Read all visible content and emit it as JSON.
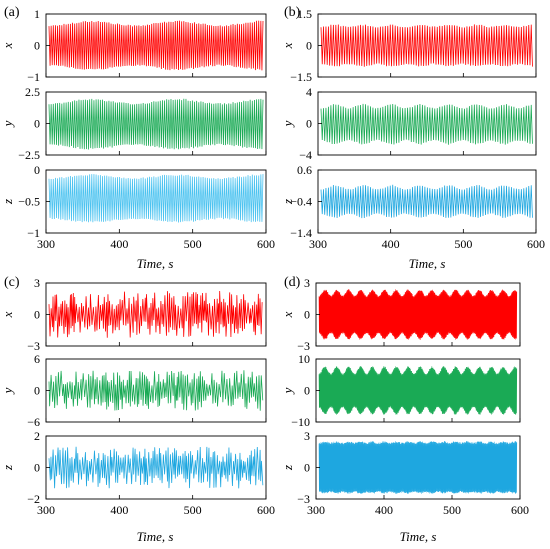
{
  "chart_data": [
    {
      "type": "line",
      "panel_label": "(a)",
      "xlabel": "Time, s",
      "xlim": [
        300,
        600
      ],
      "xticks": [
        "300",
        "400",
        "500",
        "600"
      ],
      "series": [
        {
          "var": "x",
          "color": "#ff0000",
          "ylim": [
            -1,
            1
          ],
          "yticks": [
            "-1",
            "0",
            "1"
          ],
          "center": 0.0,
          "amplitude": 0.82,
          "style": "periodic",
          "period": 3.0,
          "modulation_period": 120,
          "modulation_depth": 0.18
        },
        {
          "var": "y",
          "color": "#1aaa55",
          "ylim": [
            -2.5,
            2.5
          ],
          "yticks": [
            "-2.5",
            "0",
            "2.5"
          ],
          "center": -0.05,
          "amplitude": 2.1,
          "style": "periodic",
          "period": 3.0,
          "modulation_period": 120,
          "modulation_depth": 0.18
        },
        {
          "var": "z",
          "color": "#4cc3f0",
          "ylim": [
            -1,
            0
          ],
          "yticks": [
            "-1",
            "-0.5",
            "0"
          ],
          "center": -0.45,
          "amplitude": 0.4,
          "style": "periodic",
          "period": 3.0,
          "modulation_period": 120,
          "modulation_depth": 0.15
        }
      ]
    },
    {
      "type": "line",
      "panel_label": "(b)",
      "xlabel": "Time, s",
      "xlim": [
        300,
        600
      ],
      "xticks": [
        "300",
        "400",
        "500",
        "600"
      ],
      "series": [
        {
          "var": "x",
          "color": "#ff0000",
          "ylim": [
            -1.5,
            1.5
          ],
          "yticks": [
            "-1.5",
            "0",
            "1.5"
          ],
          "center": 0.0,
          "amplitude": 1.05,
          "style": "periodic",
          "period": 3.5,
          "modulation_period": 40,
          "modulation_depth": 0.1
        },
        {
          "var": "y",
          "color": "#1aaa55",
          "ylim": [
            -4,
            4
          ],
          "yticks": [
            "-4",
            "0",
            "4"
          ],
          "center": -0.1,
          "amplitude": 2.7,
          "style": "periodic",
          "period": 3.5,
          "modulation_period": 40,
          "modulation_depth": 0.2
        },
        {
          "var": "z",
          "color": "#1ea7e0",
          "ylim": [
            -1.4,
            0.6
          ],
          "yticks": [
            "-1.4",
            "-0.4",
            "0.6"
          ],
          "center": -0.4,
          "amplitude": 0.55,
          "style": "periodic",
          "period": 3.5,
          "modulation_period": 40,
          "modulation_depth": 0.25
        }
      ]
    },
    {
      "type": "line",
      "panel_label": "(c)",
      "xlabel": "Time, s",
      "xlim": [
        300,
        600
      ],
      "xticks": [
        "300",
        "400",
        "500",
        "600"
      ],
      "series": [
        {
          "var": "x",
          "color": "#ff0000",
          "ylim": [
            -3,
            3
          ],
          "yticks": [
            "-3",
            "0",
            "3"
          ],
          "center": 0.0,
          "amplitude": 2.2,
          "style": "chaotic",
          "period": 3.0
        },
        {
          "var": "y",
          "color": "#1aaa55",
          "ylim": [
            -6,
            6
          ],
          "yticks": [
            "-6",
            "0",
            "6"
          ],
          "center": 0.0,
          "amplitude": 3.8,
          "style": "chaotic",
          "period": 3.0
        },
        {
          "var": "z",
          "color": "#1ea7e0",
          "ylim": [
            -2,
            2
          ],
          "yticks": [
            "-2",
            "0",
            "2"
          ],
          "center": 0.0,
          "amplitude": 1.3,
          "style": "chaotic",
          "period": 3.0
        }
      ]
    },
    {
      "type": "line",
      "panel_label": "(d)",
      "xlabel": "Time, s",
      "xlim": [
        300,
        600
      ],
      "xticks": [
        "300",
        "400",
        "500",
        "600"
      ],
      "series": [
        {
          "var": "x",
          "color": "#ff0000",
          "ylim": [
            -3,
            3
          ],
          "yticks": [
            "-3",
            "0",
            "3"
          ],
          "center": 0.0,
          "amplitude": 2.5,
          "style": "dense",
          "period": 0.9,
          "modulation_period": 18,
          "modulation_depth": 0.25
        },
        {
          "var": "y",
          "color": "#1aaa55",
          "ylim": [
            -10,
            10
          ],
          "yticks": [
            "-10",
            "0",
            "10"
          ],
          "center": 0.0,
          "amplitude": 8.0,
          "style": "dense",
          "period": 0.9,
          "modulation_period": 18,
          "modulation_depth": 0.3
        },
        {
          "var": "z",
          "color": "#1ea7e0",
          "ylim": [
            -3,
            3
          ],
          "yticks": [
            "-3",
            "0",
            "3"
          ],
          "center": 0.0,
          "amplitude": 2.6,
          "style": "dense",
          "period": 0.9,
          "modulation_period": 18,
          "modulation_depth": 0.05
        }
      ]
    }
  ]
}
